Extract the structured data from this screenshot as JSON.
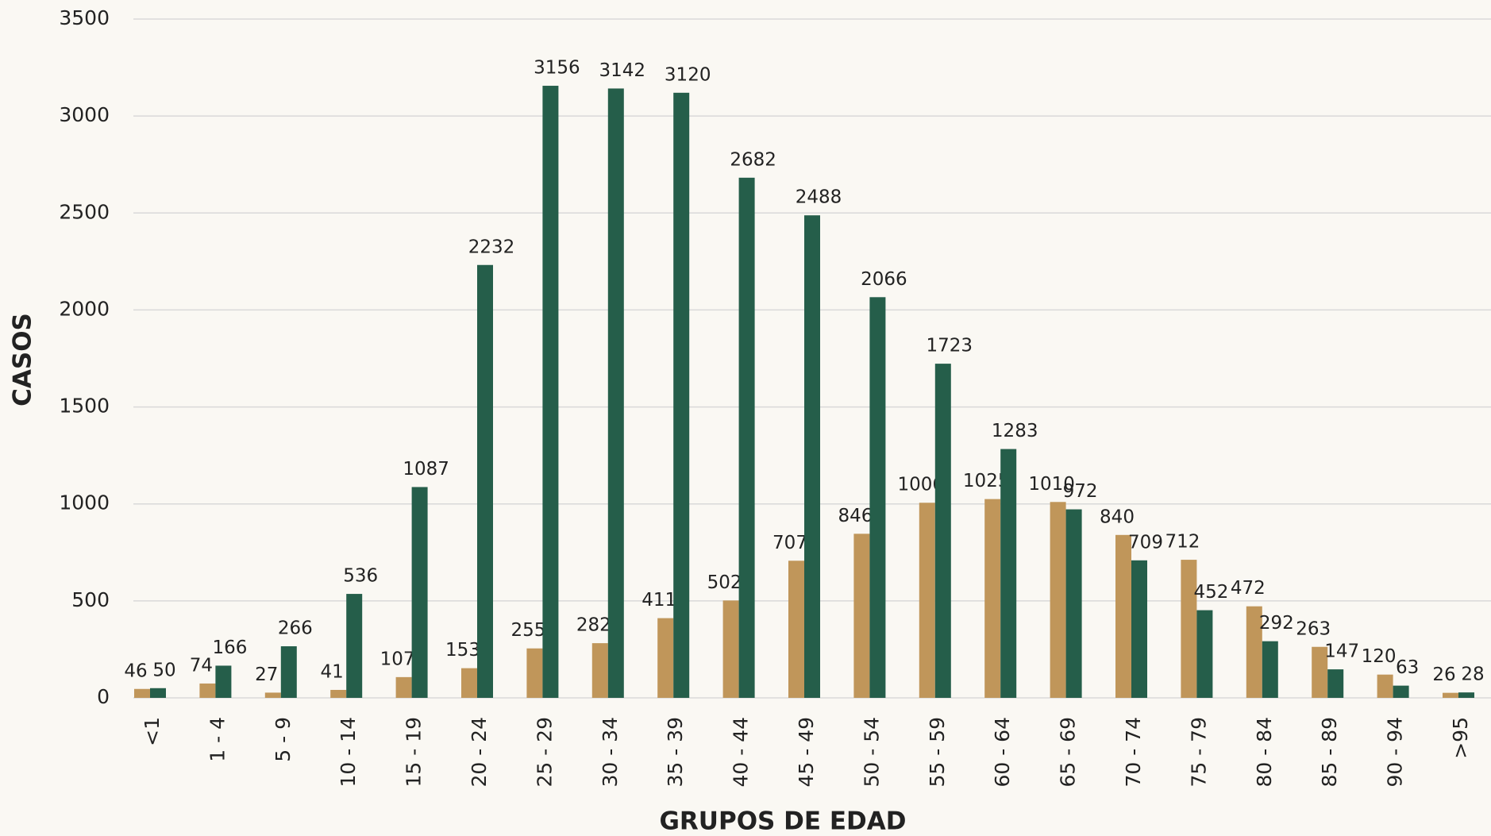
{
  "chart_data": {
    "type": "bar",
    "y_label": "CASOS",
    "x_label": "GRUPOS DE EDAD",
    "categories": [
      "<1",
      "1 - 4",
      "5 - 9",
      "10 - 14",
      "15 - 19",
      "20 - 24",
      "25 - 29",
      "30 - 34",
      "35 - 39",
      "40 - 44",
      "45 - 49",
      "50 - 54",
      "55 - 59",
      "60 - 64",
      "65 - 69",
      "70 - 74",
      "75 - 79",
      "80 - 84",
      "85 - 89",
      "90 - 94",
      ">95"
    ],
    "series": [
      {
        "color": "#c0965a",
        "values": [
          46,
          74,
          27,
          41,
          107,
          153,
          255,
          282,
          411,
          502,
          707,
          846,
          1006,
          1025,
          1010,
          840,
          712,
          472,
          263,
          120,
          26
        ]
      },
      {
        "color": "#255e4a",
        "values": [
          50,
          166,
          266,
          536,
          1087,
          2232,
          3156,
          3142,
          3120,
          2682,
          2488,
          2066,
          1723,
          1283,
          972,
          709,
          452,
          292,
          147,
          63,
          28
        ]
      }
    ],
    "ylim": [
      0,
      3500
    ],
    "yticks": [
      0,
      500,
      1000,
      1500,
      2000,
      2500,
      3000,
      3500
    ],
    "grid": true
  }
}
